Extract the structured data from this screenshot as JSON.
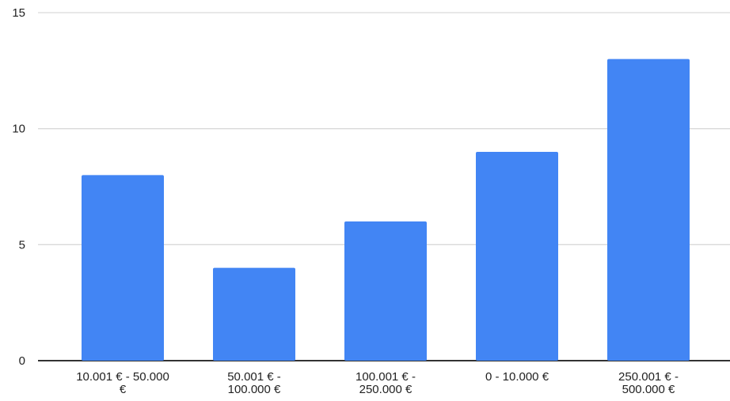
{
  "chart_data": {
    "type": "bar",
    "categories": [
      [
        "10.001 € - 50.000",
        "€"
      ],
      [
        "50.001 € -",
        "100.000 €"
      ],
      [
        "100.001 € -",
        "250.000 €"
      ],
      [
        "0 - 10.000 €"
      ],
      [
        "250.001 € -",
        "500.000 €"
      ]
    ],
    "values": [
      8,
      4,
      6,
      9,
      13
    ],
    "ylim": [
      0,
      15
    ],
    "yticks": [
      0,
      5,
      10,
      15
    ],
    "grid": true,
    "bar_color": "#4285f4",
    "title": "",
    "xlabel": "",
    "ylabel": ""
  }
}
